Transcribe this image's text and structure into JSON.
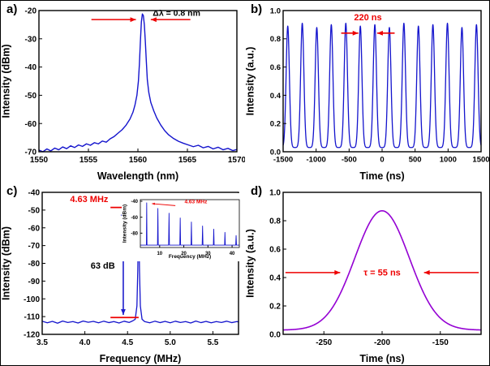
{
  "figure": {
    "background": "#ffffff",
    "panel_labels": [
      "a)",
      "b)",
      "c)",
      "d)"
    ]
  },
  "colors": {
    "trace_blue": "#1414cd",
    "trace_violet": "#9400d3",
    "annotation_red": "#ee0000",
    "arrow_navy": "#1c1ccd",
    "axis_black": "#000000"
  },
  "chart_data": [
    {
      "id": "a",
      "type": "line",
      "panel": "a",
      "xlabel": "Wavelength (nm)",
      "ylabel": "Intensity (dBm)",
      "xlim": [
        1550,
        1570
      ],
      "ylim": [
        -70,
        -20
      ],
      "xticks": [
        [
          1550,
          "1550"
        ],
        [
          1555,
          "1555"
        ],
        [
          1560,
          "1560"
        ],
        [
          1565,
          "1565"
        ],
        [
          1570,
          "1570"
        ]
      ],
      "yticks": [
        [
          -20,
          "-20"
        ],
        [
          -30,
          "-30"
        ],
        [
          -40,
          "-40"
        ],
        [
          -50,
          "-50"
        ],
        [
          -60,
          "-60"
        ],
        [
          -70,
          "-70"
        ]
      ],
      "margins": {
        "l": 47,
        "r": 10,
        "t": 12,
        "b": 38
      },
      "tickFont": 10,
      "labelFont": 12.5,
      "series": [
        {
          "name": "optical-spectrum",
          "color": "#1414cd",
          "width": 1.4,
          "mode": "points",
          "points": [
            [
              1550,
              -69.4
            ],
            [
              1550.4,
              -70
            ],
            [
              1550.8,
              -69
            ],
            [
              1551.2,
              -69.7
            ],
            [
              1551.6,
              -68.7
            ],
            [
              1552,
              -69.3
            ],
            [
              1552.4,
              -68.3
            ],
            [
              1552.8,
              -68.9
            ],
            [
              1553.2,
              -67.9
            ],
            [
              1553.6,
              -68.5
            ],
            [
              1554,
              -67.6
            ],
            [
              1554.4,
              -68.1
            ],
            [
              1554.8,
              -67.2
            ],
            [
              1555.2,
              -67.7
            ],
            [
              1555.6,
              -66.8
            ],
            [
              1556,
              -67.2
            ],
            [
              1556.4,
              -66.2
            ],
            [
              1556.8,
              -66.6
            ],
            [
              1557.2,
              -65.4
            ],
            [
              1557.6,
              -64.6
            ],
            [
              1558,
              -63.4
            ],
            [
              1558.4,
              -62.2
            ],
            [
              1558.8,
              -60.6
            ],
            [
              1559.2,
              -58.4
            ],
            [
              1559.5,
              -56
            ],
            [
              1559.7,
              -53.5
            ],
            [
              1559.9,
              -50
            ],
            [
              1560.05,
              -45
            ],
            [
              1560.15,
              -39
            ],
            [
              1560.25,
              -31
            ],
            [
              1560.35,
              -24
            ],
            [
              1560.45,
              -21.2
            ],
            [
              1560.55,
              -21.8
            ],
            [
              1560.65,
              -25
            ],
            [
              1560.75,
              -31
            ],
            [
              1560.85,
              -38
            ],
            [
              1560.95,
              -44.5
            ],
            [
              1561.1,
              -49
            ],
            [
              1561.3,
              -52.5
            ],
            [
              1561.6,
              -55.5
            ],
            [
              1561.9,
              -58
            ],
            [
              1562.3,
              -60.5
            ],
            [
              1562.7,
              -62.5
            ],
            [
              1563.1,
              -64
            ],
            [
              1563.6,
              -65.3
            ],
            [
              1564.1,
              -66.3
            ],
            [
              1564.6,
              -67
            ],
            [
              1565.1,
              -67.6
            ],
            [
              1565.6,
              -68.2
            ],
            [
              1566.1,
              -67.7
            ],
            [
              1566.6,
              -68.6
            ],
            [
              1567.1,
              -68.1
            ],
            [
              1567.6,
              -69
            ],
            [
              1568.1,
              -68.4
            ],
            [
              1568.6,
              -69.3
            ],
            [
              1569.1,
              -68.8
            ],
            [
              1569.6,
              -69.6
            ],
            [
              1570,
              -69.2
            ]
          ]
        }
      ],
      "annotations": [
        {
          "type": "arrow",
          "x1": 1555.3,
          "y1": -23.2,
          "x2": 1559.8,
          "y2": -23.2,
          "color": "#ee0000",
          "width": 1.6
        },
        {
          "type": "arrow",
          "x1": 1565.3,
          "y1": -23.2,
          "x2": 1561.3,
          "y2": -23.2,
          "color": "#ee0000",
          "width": 1.6
        },
        {
          "type": "text",
          "x": 1561.5,
          "y": -21.8,
          "text": "Δλ = 0.8 nm",
          "color": "#000000",
          "size": 10.5,
          "weight": "bold",
          "anchor": "start"
        }
      ]
    },
    {
      "id": "b",
      "type": "line",
      "panel": "b",
      "xlabel": "Time (ns)",
      "ylabel": "Intensity (a.u.)",
      "xlim": [
        -1500,
        1500
      ],
      "ylim": [
        0,
        1
      ],
      "xticks": [
        [
          -1500,
          "-1500"
        ],
        [
          -1000,
          "-1000"
        ],
        [
          -500,
          "-500"
        ],
        [
          0,
          "0"
        ],
        [
          500,
          "500"
        ],
        [
          1000,
          "1000"
        ],
        [
          1500,
          "1500"
        ]
      ],
      "yticks": [
        [
          0,
          "0.0"
        ],
        [
          0.2,
          "0.2"
        ],
        [
          0.4,
          "0.4"
        ],
        [
          0.6,
          "0.6"
        ],
        [
          0.8,
          "0.8"
        ],
        [
          1,
          "1.0"
        ]
      ],
      "margins": {
        "l": 47,
        "r": 10,
        "t": 12,
        "b": 38
      },
      "tickFont": 9.5,
      "labelFont": 12.5,
      "series": [
        {
          "name": "pulse-train",
          "color": "#1414cd",
          "width": 1.3,
          "mode": "pulse_train",
          "baseline": 0.03,
          "fwhm": 58,
          "period_ns": 220,
          "samples": 1200,
          "centers": [
            -1430,
            -1210,
            -990,
            -770,
            -550,
            -330,
            -110,
            110,
            330,
            550,
            770,
            990,
            1210,
            1430
          ],
          "amps": [
            0.86,
            0.88,
            0.85,
            0.87,
            0.88,
            0.86,
            0.87,
            0.85,
            0.88,
            0.86,
            0.87,
            0.88,
            0.85,
            0.87
          ]
        }
      ],
      "annotations": [
        {
          "type": "text",
          "x": -215,
          "y": 0.93,
          "text": "220 ns",
          "color": "#ee0000",
          "size": 11,
          "weight": "bold",
          "anchor": "middle"
        },
        {
          "type": "arrow",
          "x1": -620,
          "y1": 0.84,
          "x2": -360,
          "y2": 0.84,
          "color": "#ee0000",
          "width": 1.6
        },
        {
          "type": "arrow",
          "x1": 190,
          "y1": 0.84,
          "x2": -75,
          "y2": 0.84,
          "color": "#ee0000",
          "width": 1.6
        }
      ]
    },
    {
      "id": "c",
      "type": "line",
      "panel": "c",
      "xlabel": "Frequency (MHz)",
      "ylabel": "Intensity (dBm)",
      "xlim": [
        3.5,
        5.8
      ],
      "ylim": [
        -120,
        -40
      ],
      "xticks": [
        [
          3.5,
          "3.5"
        ],
        [
          4.0,
          "4.0"
        ],
        [
          4.5,
          "4.5"
        ],
        [
          5.0,
          "5.0"
        ],
        [
          5.5,
          "5.5"
        ]
      ],
      "yticks": [
        [
          -40,
          "-40"
        ],
        [
          -50,
          "-50"
        ],
        [
          -60,
          "-60"
        ],
        [
          -70,
          "-70"
        ],
        [
          -80,
          "-80"
        ],
        [
          -90,
          "-90"
        ],
        [
          -100,
          "-100"
        ],
        [
          -110,
          "-110"
        ],
        [
          -120,
          "-120"
        ]
      ],
      "margins": {
        "l": 51,
        "r": 8,
        "t": 12,
        "b": 38
      },
      "tickFont": 10,
      "labelFont": 12.5,
      "series": [
        {
          "name": "rf-spectrum",
          "color": "#1414cd",
          "width": 1.3,
          "mode": "points",
          "points": [
            [
              3.5,
              -112.6
            ],
            [
              3.56,
              -113.5
            ],
            [
              3.62,
              -112.7
            ],
            [
              3.68,
              -113.7
            ],
            [
              3.74,
              -112.5
            ],
            [
              3.8,
              -113.3
            ],
            [
              3.86,
              -112.8
            ],
            [
              3.92,
              -113.6
            ],
            [
              3.98,
              -112.5
            ],
            [
              4.04,
              -113.2
            ],
            [
              4.1,
              -112.7
            ],
            [
              4.16,
              -113.5
            ],
            [
              4.22,
              -112.6
            ],
            [
              4.28,
              -113.4
            ],
            [
              4.34,
              -112.8
            ],
            [
              4.4,
              -113.6
            ],
            [
              4.46,
              -112.6
            ],
            [
              4.52,
              -113.3
            ],
            [
              4.56,
              -112.4
            ],
            [
              4.59,
              -111.5
            ],
            [
              4.61,
              -104
            ],
            [
              4.62,
              -84
            ],
            [
              4.63,
              -48
            ],
            [
              4.64,
              -84
            ],
            [
              4.65,
              -104
            ],
            [
              4.67,
              -111.5
            ],
            [
              4.7,
              -112.8
            ],
            [
              4.76,
              -113.5
            ],
            [
              4.82,
              -112.6
            ],
            [
              4.88,
              -113.4
            ],
            [
              4.94,
              -112.7
            ],
            [
              5.0,
              -113.5
            ],
            [
              5.06,
              -112.6
            ],
            [
              5.12,
              -113.3
            ],
            [
              5.18,
              -112.8
            ],
            [
              5.24,
              -113.6
            ],
            [
              5.3,
              -112.5
            ],
            [
              5.36,
              -113.4
            ],
            [
              5.42,
              -112.7
            ],
            [
              5.48,
              -113.5
            ],
            [
              5.54,
              -112.8
            ],
            [
              5.6,
              -113.3
            ],
            [
              5.66,
              -112.6
            ],
            [
              5.72,
              -113.4
            ],
            [
              5.78,
              -112.8
            ],
            [
              5.8,
              -113
            ]
          ]
        }
      ],
      "annotations": [
        {
          "type": "text",
          "x": 4.05,
          "y": -45.5,
          "text": "4.63 MHz",
          "color": "#ee0000",
          "size": 11,
          "weight": "bold",
          "anchor": "middle"
        },
        {
          "type": "line",
          "x1": 4.3,
          "y1": -48.5,
          "x2": 4.63,
          "y2": -48.5,
          "color": "#ee0000",
          "width": 1.8
        },
        {
          "type": "line",
          "x1": 4.3,
          "y1": -110.5,
          "x2": 4.63,
          "y2": -110.5,
          "color": "#ee0000",
          "width": 1.8
        },
        {
          "type": "doublearrow",
          "x1": 4.45,
          "y1": -50,
          "x2": 4.45,
          "y2": -109,
          "color": "#1c1ccd",
          "width": 1.6
        },
        {
          "type": "text",
          "x": 4.21,
          "y": -83,
          "text": "63 dB",
          "color": "#000000",
          "size": 11,
          "weight": "bold",
          "anchor": "middle"
        }
      ]
    },
    {
      "id": "c-inset",
      "type": "line",
      "panel": "c",
      "xlabel": "Frequency (MHz)",
      "ylabel": "Intensity (dBm)",
      "xlim": [
        2,
        43
      ],
      "ylim": [
        -98,
        -38
      ],
      "xticks": [
        [
          10,
          "10"
        ],
        [
          20,
          "20"
        ],
        [
          30,
          "30"
        ],
        [
          40,
          "40"
        ]
      ],
      "yticks": [
        [
          -40,
          "-40"
        ],
        [
          -60,
          "-60"
        ],
        [
          -80,
          "-80"
        ]
      ],
      "margins": {
        "l": 23,
        "r": 3,
        "t": 8,
        "b": 17
      },
      "tickFont": 6,
      "labelFont": 6.5,
      "tickLen": 2.5,
      "frameWidth": 0.8,
      "series": [
        {
          "name": "rf-harmonics",
          "color": "#1414cd",
          "width": 0.9,
          "mode": "points",
          "points": [
            [
              2,
              -95
            ],
            [
              4.5,
              -95
            ],
            [
              4.63,
              -42
            ],
            [
              4.76,
              -95
            ],
            [
              9.1,
              -95
            ],
            [
              9.26,
              -49
            ],
            [
              9.42,
              -95
            ],
            [
              13.7,
              -95
            ],
            [
              13.89,
              -55
            ],
            [
              14.05,
              -95
            ],
            [
              18.35,
              -95
            ],
            [
              18.52,
              -61
            ],
            [
              18.68,
              -95
            ],
            [
              23.0,
              -95
            ],
            [
              23.15,
              -66
            ],
            [
              23.3,
              -95
            ],
            [
              27.6,
              -95
            ],
            [
              27.78,
              -71
            ],
            [
              27.95,
              -95
            ],
            [
              32.25,
              -95
            ],
            [
              32.41,
              -75
            ],
            [
              32.57,
              -95
            ],
            [
              36.9,
              -95
            ],
            [
              37.04,
              -79
            ],
            [
              37.2,
              -95
            ],
            [
              41.5,
              -95
            ],
            [
              41.67,
              -83
            ],
            [
              41.83,
              -95
            ],
            [
              43,
              -95
            ]
          ]
        }
      ],
      "annotations": [
        {
          "type": "text",
          "x": 25,
          "y": -42.5,
          "text": "4.63 MHz",
          "color": "#ee0000",
          "size": 6.5,
          "weight": "bold",
          "anchor": "middle"
        },
        {
          "type": "arrow",
          "x1": 16.5,
          "y1": -45.5,
          "x2": 6.8,
          "y2": -43,
          "color": "#ee0000",
          "width": 0.9,
          "head": 3.5
        }
      ]
    },
    {
      "id": "d",
      "type": "line",
      "panel": "d",
      "xlabel": "Time (ns)",
      "ylabel": "Intensity (a.u.)",
      "xlim": [
        -285,
        -115
      ],
      "ylim": [
        0,
        1
      ],
      "xticks": [
        [
          -250,
          "-250"
        ],
        [
          -200,
          "-200"
        ],
        [
          -150,
          "-150"
        ]
      ],
      "yticks": [
        [
          0,
          "0.0"
        ],
        [
          0.2,
          "0.2"
        ],
        [
          0.4,
          "0.4"
        ],
        [
          0.6,
          "0.6"
        ],
        [
          0.8,
          "0.8"
        ],
        [
          1,
          "1.0"
        ]
      ],
      "margins": {
        "l": 47,
        "r": 10,
        "t": 12,
        "b": 38
      },
      "tickFont": 10,
      "labelFont": 12.5,
      "series": [
        {
          "name": "single-pulse",
          "color": "#9400d3",
          "width": 1.6,
          "mode": "gaussian",
          "center": -200,
          "amp": 0.84,
          "baseline": 0.03,
          "fwhm": 55,
          "samples": 500
        }
      ],
      "annotations": [
        {
          "type": "arrow",
          "x1": -283,
          "y1": 0.435,
          "x2": -236,
          "y2": 0.435,
          "color": "#ee0000",
          "width": 1.6
        },
        {
          "type": "arrow",
          "x1": -117,
          "y1": 0.435,
          "x2": -164,
          "y2": 0.435,
          "color": "#ee0000",
          "width": 1.6
        },
        {
          "type": "text",
          "x": -200,
          "y": 0.415,
          "text": "τ = 55 ns",
          "color": "#ee0000",
          "size": 11,
          "weight": "bold",
          "anchor": "middle"
        }
      ]
    }
  ]
}
